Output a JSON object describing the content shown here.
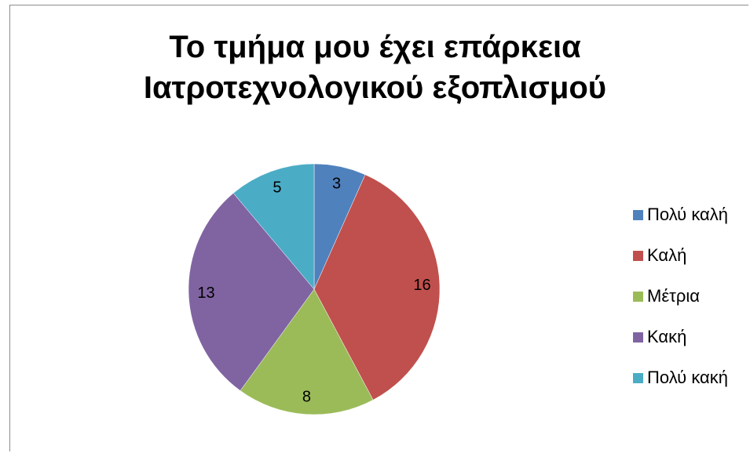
{
  "chart_data": {
    "type": "pie",
    "title": "Το τμήμα μου έχει επάρκεια Ιατροτεχνολογικού εξοπλισμού",
    "title_lines": [
      "Το τμήμα μου έχει επάρκεια",
      "Ιατροτεχνολογικού εξοπλισμού"
    ],
    "categories": [
      "Πολύ καλή",
      "Καλή",
      "Μέτρια",
      "Κακή",
      "Πολύ κακή"
    ],
    "values": [
      3,
      16,
      8,
      13,
      5
    ],
    "colors": [
      "#4F81BD",
      "#C0504D",
      "#9BBB59",
      "#8064A2",
      "#4BACC6"
    ],
    "data_labels": [
      "3",
      "16",
      "8",
      "13",
      "5"
    ],
    "legend_position": "right",
    "start_angle": "12 o'clock",
    "direction": "clockwise"
  }
}
